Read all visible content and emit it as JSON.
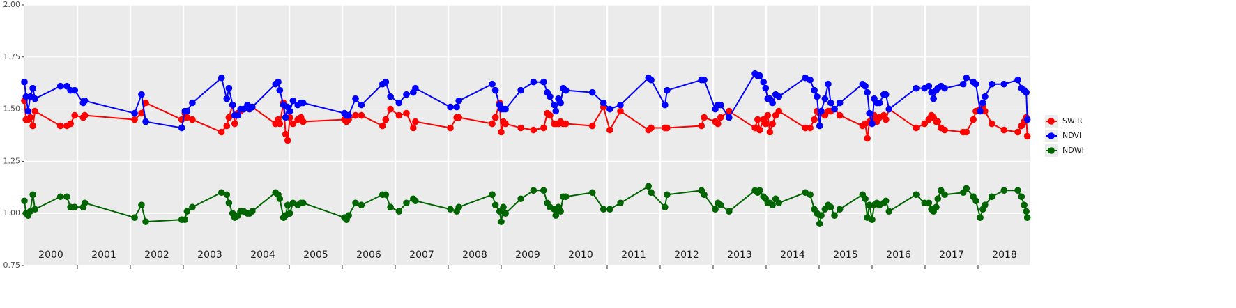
{
  "chart_data": {
    "type": "line",
    "x": [
      2000.0,
      2000.03,
      2000.07,
      2000.11,
      2000.16,
      2000.2,
      2000.68,
      2000.8,
      2000.87,
      2000.95,
      2001.11,
      2001.14,
      2002.08,
      2002.21,
      2002.29,
      2002.97,
      2003.03,
      2003.07,
      2003.17,
      2003.72,
      2003.82,
      2003.86,
      2003.93,
      2003.97,
      2004.03,
      2004.08,
      2004.14,
      2004.21,
      2004.25,
      2004.3,
      2004.74,
      2004.79,
      2004.82,
      2004.89,
      2004.93,
      2004.97,
      2005.01,
      2005.07,
      2005.16,
      2005.22,
      2005.26,
      2006.04,
      2006.08,
      2006.12,
      2006.25,
      2006.36,
      2006.76,
      2006.82,
      2006.91,
      2007.07,
      2007.21,
      2007.34,
      2007.38,
      2008.04,
      2008.16,
      2008.2,
      2008.83,
      2008.89,
      2008.97,
      2009.0,
      2009.04,
      2009.08,
      2009.37,
      2009.61,
      2009.8,
      2009.87,
      2009.92,
      2010.0,
      2010.03,
      2010.08,
      2010.12,
      2010.17,
      2010.22,
      2010.72,
      2010.93,
      2011.05,
      2011.25,
      2011.78,
      2011.83,
      2012.09,
      2012.13,
      2012.78,
      2012.83,
      2013.04,
      2013.09,
      2013.14,
      2013.3,
      2013.79,
      2013.84,
      2013.88,
      2013.95,
      2013.99,
      2014.03,
      2014.07,
      2014.12,
      2014.18,
      2014.24,
      2014.74,
      2014.83,
      2014.91,
      2014.96,
      2015.01,
      2015.04,
      2015.11,
      2015.17,
      2015.22,
      2015.29,
      2015.39,
      2015.82,
      2015.87,
      2015.91,
      2015.95,
      2016.0,
      2016.04,
      2016.09,
      2016.14,
      2016.22,
      2016.26,
      2016.32,
      2016.83,
      2016.99,
      2017.07,
      2017.12,
      2017.16,
      2017.21,
      2017.24,
      2017.3,
      2017.37,
      2017.72,
      2017.78,
      2017.91,
      2017.96,
      2018.04,
      2018.09,
      2018.13,
      2018.26,
      2018.49,
      2018.75,
      2018.82,
      2018.87,
      2018.91,
      2018.93
    ],
    "series": [
      {
        "name": "SWIR",
        "color": "#ff0000",
        "values": [
          1.54,
          1.45,
          1.45,
          1.46,
          1.42,
          1.49,
          1.42,
          1.42,
          1.43,
          1.47,
          1.46,
          1.47,
          1.45,
          1.48,
          1.53,
          1.45,
          1.48,
          1.46,
          1.45,
          1.39,
          1.42,
          1.46,
          1.52,
          1.43,
          1.48,
          1.49,
          1.5,
          1.51,
          1.5,
          1.51,
          1.43,
          1.45,
          1.43,
          1.53,
          1.38,
          1.35,
          1.46,
          1.43,
          1.45,
          1.46,
          1.44,
          1.45,
          1.44,
          1.45,
          1.47,
          1.47,
          1.42,
          1.45,
          1.5,
          1.47,
          1.48,
          1.41,
          1.44,
          1.41,
          1.46,
          1.46,
          1.43,
          1.46,
          1.53,
          1.39,
          1.44,
          1.43,
          1.41,
          1.4,
          1.41,
          1.48,
          1.47,
          1.43,
          1.43,
          1.43,
          1.44,
          1.43,
          1.43,
          1.42,
          1.51,
          1.4,
          1.49,
          1.4,
          1.41,
          1.41,
          1.41,
          1.42,
          1.46,
          1.44,
          1.43,
          1.46,
          1.49,
          1.41,
          1.45,
          1.4,
          1.45,
          1.43,
          1.47,
          1.39,
          1.43,
          1.47,
          1.49,
          1.41,
          1.41,
          1.45,
          1.49,
          1.48,
          1.48,
          1.47,
          1.49,
          1.49,
          1.5,
          1.47,
          1.42,
          1.43,
          1.36,
          1.44,
          1.45,
          1.47,
          1.44,
          1.46,
          1.47,
          1.45,
          1.5,
          1.41,
          1.43,
          1.45,
          1.47,
          1.46,
          1.44,
          1.44,
          1.41,
          1.4,
          1.39,
          1.39,
          1.45,
          1.49,
          1.5,
          1.51,
          1.49,
          1.43,
          1.4,
          1.39,
          1.42,
          1.44,
          1.46,
          1.37
        ]
      },
      {
        "name": "NDVI",
        "color": "#0000ff",
        "values": [
          1.63,
          1.56,
          1.49,
          1.56,
          1.6,
          1.55,
          1.61,
          1.61,
          1.59,
          1.59,
          1.53,
          1.54,
          1.48,
          1.57,
          1.44,
          1.41,
          1.49,
          1.49,
          1.53,
          1.65,
          1.55,
          1.6,
          1.52,
          1.47,
          1.47,
          1.5,
          1.5,
          1.52,
          1.5,
          1.51,
          1.62,
          1.63,
          1.59,
          1.52,
          1.46,
          1.51,
          1.49,
          1.54,
          1.52,
          1.53,
          1.53,
          1.48,
          1.47,
          1.47,
          1.55,
          1.52,
          1.62,
          1.63,
          1.56,
          1.53,
          1.57,
          1.58,
          1.6,
          1.51,
          1.51,
          1.54,
          1.62,
          1.59,
          1.52,
          1.5,
          1.5,
          1.5,
          1.59,
          1.63,
          1.63,
          1.58,
          1.56,
          1.52,
          1.49,
          1.55,
          1.53,
          1.6,
          1.59,
          1.58,
          1.53,
          1.5,
          1.52,
          1.65,
          1.64,
          1.52,
          1.59,
          1.64,
          1.64,
          1.5,
          1.52,
          1.52,
          1.46,
          1.67,
          1.66,
          1.66,
          1.63,
          1.6,
          1.55,
          1.55,
          1.53,
          1.57,
          1.56,
          1.65,
          1.64,
          1.59,
          1.56,
          1.42,
          1.49,
          1.55,
          1.62,
          1.53,
          1.5,
          1.53,
          1.62,
          1.61,
          1.58,
          1.48,
          1.43,
          1.55,
          1.53,
          1.53,
          1.57,
          1.57,
          1.5,
          1.6,
          1.6,
          1.61,
          1.58,
          1.55,
          1.59,
          1.6,
          1.61,
          1.6,
          1.62,
          1.65,
          1.63,
          1.62,
          1.49,
          1.53,
          1.56,
          1.62,
          1.62,
          1.64,
          1.6,
          1.59,
          1.58,
          1.45
        ]
      },
      {
        "name": "NDWI",
        "color": "#006400",
        "values": [
          1.06,
          1.0,
          0.99,
          1.01,
          1.09,
          1.02,
          1.08,
          1.08,
          1.03,
          1.03,
          1.03,
          1.05,
          0.98,
          1.04,
          0.96,
          0.97,
          0.97,
          1.01,
          1.03,
          1.1,
          1.09,
          1.05,
          1.0,
          0.98,
          0.99,
          1.01,
          1.01,
          1.0,
          1.0,
          1.01,
          1.1,
          1.09,
          1.07,
          0.98,
          0.99,
          1.04,
          1.0,
          1.05,
          1.04,
          1.05,
          1.05,
          0.98,
          0.97,
          0.99,
          1.05,
          1.04,
          1.09,
          1.09,
          1.03,
          1.01,
          1.05,
          1.07,
          1.06,
          1.02,
          1.01,
          1.03,
          1.09,
          1.04,
          1.01,
          0.96,
          1.03,
          1.0,
          1.07,
          1.11,
          1.11,
          1.05,
          1.03,
          1.02,
          0.99,
          1.03,
          1.01,
          1.08,
          1.08,
          1.1,
          1.02,
          1.02,
          1.05,
          1.13,
          1.1,
          1.03,
          1.09,
          1.11,
          1.09,
          1.02,
          1.05,
          1.04,
          1.01,
          1.11,
          1.1,
          1.11,
          1.08,
          1.07,
          1.05,
          1.05,
          1.04,
          1.07,
          1.05,
          1.1,
          1.09,
          1.02,
          1.0,
          0.95,
          0.99,
          1.02,
          1.04,
          1.03,
          0.99,
          1.02,
          1.09,
          1.07,
          0.98,
          1.04,
          0.97,
          1.04,
          1.05,
          1.04,
          1.05,
          1.06,
          1.01,
          1.09,
          1.05,
          1.05,
          1.02,
          1.01,
          1.03,
          1.07,
          1.11,
          1.09,
          1.1,
          1.12,
          1.08,
          1.06,
          0.98,
          1.02,
          1.04,
          1.08,
          1.11,
          1.11,
          1.08,
          1.04,
          1.01,
          0.98
        ]
      }
    ],
    "xlim": [
      2000,
      2019
    ],
    "xticks": [
      {
        "value": 2000.5,
        "label": "2000"
      },
      {
        "value": 2001.5,
        "label": "2001"
      },
      {
        "value": 2002.5,
        "label": "2002"
      },
      {
        "value": 2003.5,
        "label": "2003"
      },
      {
        "value": 2004.5,
        "label": "2004"
      },
      {
        "value": 2005.5,
        "label": "2005"
      },
      {
        "value": 2006.5,
        "label": "2006"
      },
      {
        "value": 2007.5,
        "label": "2007"
      },
      {
        "value": 2008.5,
        "label": "2008"
      },
      {
        "value": 2009.5,
        "label": "2009"
      },
      {
        "value": 2010.5,
        "label": "2010"
      },
      {
        "value": 2011.5,
        "label": "2011"
      },
      {
        "value": 2012.5,
        "label": "2012"
      },
      {
        "value": 2013.5,
        "label": "2013"
      },
      {
        "value": 2014.5,
        "label": "2014"
      },
      {
        "value": 2015.5,
        "label": "2015"
      },
      {
        "value": 2016.5,
        "label": "2016"
      },
      {
        "value": 2017.5,
        "label": "2017"
      },
      {
        "value": 2018.5,
        "label": "2018"
      }
    ],
    "xgrid": [
      2001,
      2002,
      2003,
      2004,
      2005,
      2006,
      2007,
      2008,
      2009,
      2010,
      2011,
      2012,
      2013,
      2014,
      2015,
      2016,
      2017,
      2018
    ],
    "ylim": [
      0.75,
      2.0
    ],
    "yticks": [
      {
        "value": 0.75,
        "label": "0.75"
      },
      {
        "value": 1,
        "label": "1.00"
      },
      {
        "value": 1.25,
        "label": "1.25"
      },
      {
        "value": 1.5,
        "label": "1.50"
      },
      {
        "value": 1.75,
        "label": "1.75"
      },
      {
        "value": 2,
        "label": "2.00"
      }
    ],
    "grid": true,
    "legend": "right"
  }
}
